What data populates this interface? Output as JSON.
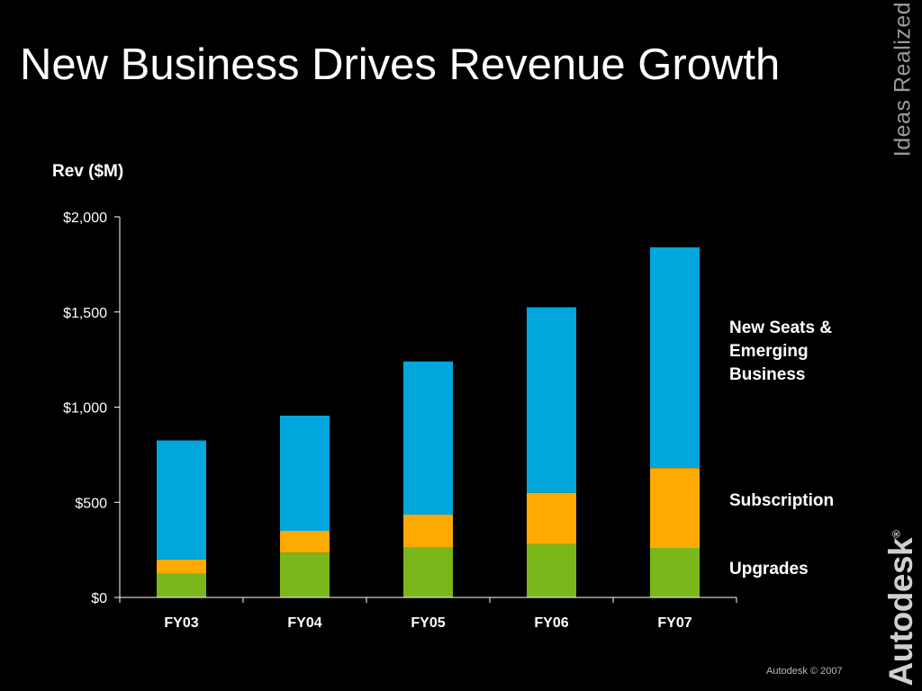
{
  "slide": {
    "title": "New Business Drives Revenue Growth",
    "tagline": "Ideas Realized",
    "brand": "Autodesk",
    "brand_mark": "®",
    "footer": "Autodesk © 2007"
  },
  "colors": {
    "background": "#000000",
    "new_seats": "#00a6dc",
    "subscription": "#ffaa00",
    "upgrades": "#7ab71b"
  },
  "chart_data": {
    "type": "bar",
    "stacked": true,
    "title": "New Business Drives Revenue Growth",
    "ylabel": "Rev ($M)",
    "xlabel": "",
    "categories": [
      "FY03",
      "FY04",
      "FY05",
      "FY06",
      "FY07"
    ],
    "yticks": [
      0,
      500,
      1000,
      1500,
      2000
    ],
    "ytick_labels": [
      "$0",
      "$500",
      "$1,000",
      "$1,500",
      "$2,000"
    ],
    "ylim": [
      0,
      2000
    ],
    "grid": false,
    "legend_position": "right",
    "series": [
      {
        "name": "Upgrades",
        "color": "#7ab71b",
        "values": [
          125,
          235,
          265,
          280,
          260
        ]
      },
      {
        "name": "Subscription",
        "color": "#ffaa00",
        "values": [
          75,
          115,
          170,
          270,
          420
        ]
      },
      {
        "name": "New Seats & Emerging Business",
        "color": "#00a6dc",
        "values": [
          625,
          605,
          805,
          975,
          1160
        ]
      }
    ],
    "totals": [
      825,
      955,
      1240,
      1525,
      1840
    ]
  },
  "legend": {
    "new_seats": "New Seats & Emerging Business",
    "subscription": "Subscription",
    "upgrades": "Upgrades"
  }
}
